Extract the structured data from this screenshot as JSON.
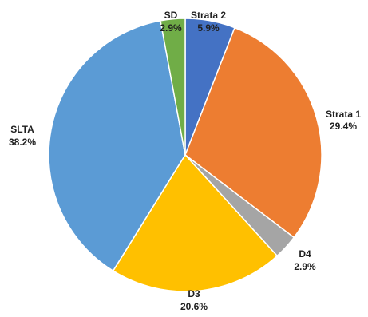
{
  "chart_data": {
    "type": "pie",
    "title": "",
    "slices": [
      {
        "name": "Strata 2",
        "value": 5.9,
        "label": "5.9%",
        "color": "#4472C4"
      },
      {
        "name": "Strata 1",
        "value": 29.4,
        "label": "29.4%",
        "color": "#ED7D31"
      },
      {
        "name": "D4",
        "value": 2.9,
        "label": "2.9%",
        "color": "#A5A5A5"
      },
      {
        "name": "D3",
        "value": 20.6,
        "label": "20.6%",
        "color": "#FFC000"
      },
      {
        "name": "SLTA",
        "value": 38.2,
        "label": "38.2%",
        "color": "#5B9BD5"
      },
      {
        "name": "SD",
        "value": 2.9,
        "label": "2.9%",
        "color": "#70AD47"
      }
    ],
    "start_angle": "12 o'clock",
    "direction": "clockwise",
    "legend": "none"
  }
}
